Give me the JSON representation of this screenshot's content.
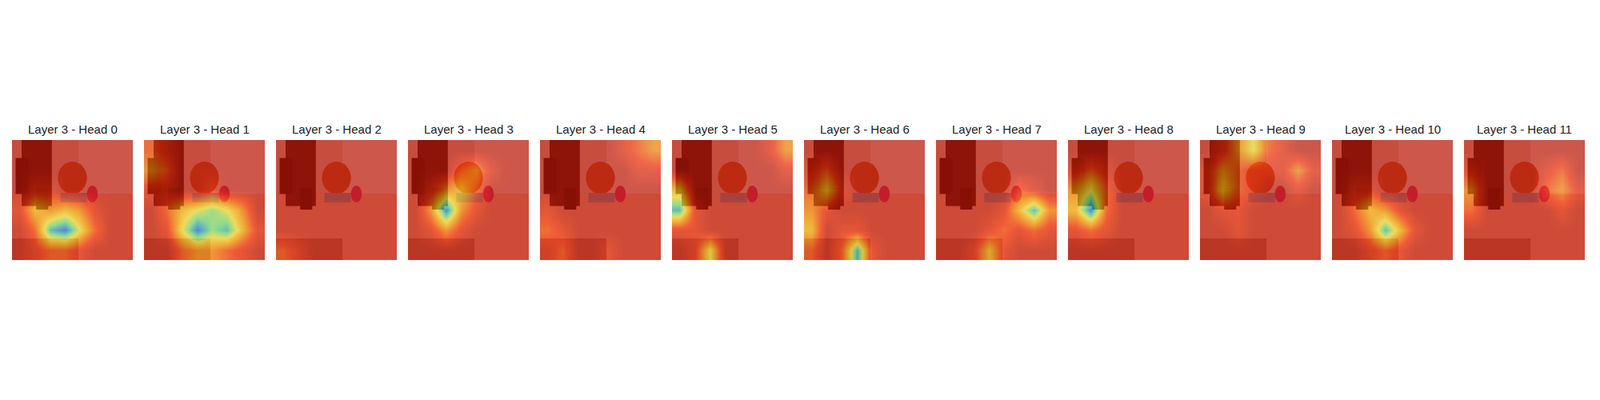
{
  "chart_data": {
    "type": "heatmap",
    "tick_labels": false,
    "zlim": [
      0,
      1
    ],
    "panels": [
      {
        "title": "Layer 3 - Head 0",
        "cells": [
          [
            0.1,
            0.1,
            0.1,
            0.1,
            0.1,
            0.1,
            0.1,
            0.1
          ],
          [
            0.1,
            0.1,
            0.1,
            0.1,
            0.1,
            0.1,
            0.1,
            0.1
          ],
          [
            0.1,
            0.2,
            0.2,
            0.1,
            0.1,
            0.1,
            0.1,
            0.1
          ],
          [
            0.2,
            0.5,
            0.4,
            0.5,
            0.4,
            0.2,
            0.1,
            0.1
          ],
          [
            0.1,
            0.3,
            0.8,
            0.9,
            0.6,
            0.3,
            0.1,
            0.1
          ],
          [
            0.1,
            0.2,
            0.3,
            0.3,
            0.2,
            0.1,
            0.1,
            0.1
          ]
        ]
      },
      {
        "title": "Layer 3 - Head 1",
        "cells": [
          [
            0.3,
            0.2,
            0.1,
            0.1,
            0.1,
            0.1,
            0.1,
            0.1
          ],
          [
            0.4,
            0.3,
            0.1,
            0.1,
            0.1,
            0.1,
            0.1,
            0.1
          ],
          [
            0.2,
            0.2,
            0.1,
            0.1,
            0.2,
            0.1,
            0.1,
            0.1
          ],
          [
            0.1,
            0.3,
            0.5,
            0.6,
            0.7,
            0.6,
            0.4,
            0.1
          ],
          [
            0.1,
            0.2,
            0.6,
            0.9,
            0.7,
            0.8,
            0.5,
            0.2
          ],
          [
            0.1,
            0.1,
            0.3,
            0.4,
            0.4,
            0.3,
            0.2,
            0.1
          ]
        ]
      },
      {
        "title": "Layer 3 - Head 2",
        "cells": [
          [
            0.1,
            0.1,
            0.1,
            0.1,
            0.1,
            0.1,
            0.1,
            0.1
          ],
          [
            0.1,
            0.1,
            0.1,
            0.1,
            0.1,
            0.1,
            0.1,
            0.1
          ],
          [
            0.1,
            0.1,
            0.1,
            0.1,
            0.1,
            0.1,
            0.1,
            0.1
          ],
          [
            0.1,
            0.1,
            0.1,
            0.1,
            0.1,
            0.1,
            0.1,
            0.1
          ],
          [
            0.1,
            0.1,
            0.1,
            0.1,
            0.1,
            0.1,
            0.1,
            0.1
          ],
          [
            0.3,
            0.2,
            0.1,
            0.1,
            0.1,
            0.1,
            0.1,
            0.1
          ]
        ]
      },
      {
        "title": "Layer 3 - Head 3",
        "cells": [
          [
            0.1,
            0.1,
            0.1,
            0.1,
            0.1,
            0.1,
            0.1,
            0.1
          ],
          [
            0.1,
            0.1,
            0.1,
            0.3,
            0.4,
            0.2,
            0.1,
            0.1
          ],
          [
            0.1,
            0.2,
            0.4,
            0.5,
            0.3,
            0.1,
            0.1,
            0.1
          ],
          [
            0.1,
            0.4,
            0.9,
            0.4,
            0.2,
            0.1,
            0.1,
            0.1
          ],
          [
            0.1,
            0.2,
            0.4,
            0.2,
            0.1,
            0.1,
            0.1,
            0.1
          ],
          [
            0.1,
            0.1,
            0.1,
            0.1,
            0.1,
            0.1,
            0.1,
            0.1
          ]
        ]
      },
      {
        "title": "Layer 3 - Head 4",
        "cells": [
          [
            0.1,
            0.1,
            0.1,
            0.1,
            0.1,
            0.2,
            0.3,
            0.4
          ],
          [
            0.1,
            0.1,
            0.1,
            0.1,
            0.1,
            0.1,
            0.2,
            0.2
          ],
          [
            0.1,
            0.1,
            0.1,
            0.1,
            0.1,
            0.1,
            0.1,
            0.1
          ],
          [
            0.2,
            0.1,
            0.1,
            0.1,
            0.1,
            0.1,
            0.1,
            0.1
          ],
          [
            0.3,
            0.2,
            0.1,
            0.1,
            0.1,
            0.1,
            0.1,
            0.1
          ],
          [
            0.2,
            0.3,
            0.1,
            0.1,
            0.2,
            0.1,
            0.1,
            0.1
          ]
        ]
      },
      {
        "title": "Layer 3 - Head 5",
        "cells": [
          [
            0.1,
            0.1,
            0.1,
            0.1,
            0.1,
            0.1,
            0.2,
            0.4
          ],
          [
            0.1,
            0.1,
            0.1,
            0.1,
            0.1,
            0.1,
            0.1,
            0.2
          ],
          [
            0.5,
            0.1,
            0.1,
            0.1,
            0.1,
            0.1,
            0.1,
            0.1
          ],
          [
            0.8,
            0.2,
            0.1,
            0.1,
            0.1,
            0.1,
            0.1,
            0.1
          ],
          [
            0.2,
            0.2,
            0.1,
            0.1,
            0.1,
            0.1,
            0.1,
            0.1
          ],
          [
            0.1,
            0.2,
            0.6,
            0.1,
            0.1,
            0.1,
            0.1,
            0.1
          ]
        ]
      },
      {
        "title": "Layer 3 - Head 6",
        "cells": [
          [
            0.1,
            0.1,
            0.1,
            0.1,
            0.1,
            0.1,
            0.1,
            0.1
          ],
          [
            0.2,
            0.3,
            0.1,
            0.1,
            0.1,
            0.1,
            0.1,
            0.1
          ],
          [
            0.3,
            0.5,
            0.2,
            0.1,
            0.1,
            0.1,
            0.1,
            0.1
          ],
          [
            0.4,
            0.2,
            0.1,
            0.1,
            0.1,
            0.1,
            0.1,
            0.1
          ],
          [
            0.5,
            0.1,
            0.2,
            0.2,
            0.1,
            0.1,
            0.1,
            0.1
          ],
          [
            0.3,
            0.1,
            0.3,
            0.8,
            0.2,
            0.1,
            0.1,
            0.1
          ]
        ]
      },
      {
        "title": "Layer 3 - Head 7",
        "cells": [
          [
            0.1,
            0.1,
            0.1,
            0.1,
            0.1,
            0.1,
            0.1,
            0.1
          ],
          [
            0.1,
            0.1,
            0.1,
            0.1,
            0.1,
            0.1,
            0.1,
            0.1
          ],
          [
            0.1,
            0.1,
            0.1,
            0.1,
            0.1,
            0.3,
            0.2,
            0.1
          ],
          [
            0.1,
            0.1,
            0.1,
            0.1,
            0.2,
            0.5,
            0.8,
            0.4
          ],
          [
            0.1,
            0.1,
            0.1,
            0.2,
            0.3,
            0.2,
            0.3,
            0.2
          ],
          [
            0.1,
            0.1,
            0.2,
            0.5,
            0.2,
            0.1,
            0.1,
            0.1
          ]
        ]
      },
      {
        "title": "Layer 3 - Head 8",
        "cells": [
          [
            0.1,
            0.1,
            0.1,
            0.1,
            0.1,
            0.1,
            0.1,
            0.1
          ],
          [
            0.2,
            0.3,
            0.2,
            0.1,
            0.1,
            0.1,
            0.1,
            0.1
          ],
          [
            0.4,
            0.6,
            0.3,
            0.1,
            0.1,
            0.1,
            0.1,
            0.1
          ],
          [
            0.5,
            0.9,
            0.3,
            0.1,
            0.1,
            0.1,
            0.1,
            0.1
          ],
          [
            0.2,
            0.3,
            0.2,
            0.1,
            0.1,
            0.1,
            0.1,
            0.1
          ],
          [
            0.1,
            0.1,
            0.1,
            0.1,
            0.1,
            0.1,
            0.1,
            0.1
          ]
        ]
      },
      {
        "title": "Layer 3 - Head 9",
        "cells": [
          [
            0.1,
            0.2,
            0.4,
            0.6,
            0.3,
            0.2,
            0.1,
            0.1
          ],
          [
            0.2,
            0.4,
            0.3,
            0.2,
            0.2,
            0.2,
            0.4,
            0.2
          ],
          [
            0.2,
            0.5,
            0.3,
            0.2,
            0.1,
            0.1,
            0.2,
            0.1
          ],
          [
            0.1,
            0.2,
            0.2,
            0.1,
            0.1,
            0.1,
            0.1,
            0.1
          ],
          [
            0.1,
            0.1,
            0.2,
            0.1,
            0.1,
            0.1,
            0.1,
            0.1
          ],
          [
            0.1,
            0.1,
            0.1,
            0.1,
            0.1,
            0.1,
            0.1,
            0.1
          ]
        ]
      },
      {
        "title": "Layer 3 - Head 10",
        "cells": [
          [
            0.1,
            0.1,
            0.1,
            0.1,
            0.1,
            0.1,
            0.1,
            0.1
          ],
          [
            0.1,
            0.1,
            0.1,
            0.1,
            0.1,
            0.1,
            0.1,
            0.1
          ],
          [
            0.1,
            0.2,
            0.2,
            0.1,
            0.1,
            0.1,
            0.1,
            0.1
          ],
          [
            0.1,
            0.3,
            0.5,
            0.4,
            0.2,
            0.1,
            0.1,
            0.1
          ],
          [
            0.1,
            0.2,
            0.4,
            0.8,
            0.5,
            0.2,
            0.1,
            0.1
          ],
          [
            0.1,
            0.1,
            0.2,
            0.3,
            0.2,
            0.1,
            0.1,
            0.1
          ]
        ]
      },
      {
        "title": "Layer 3 - Head 11",
        "cells": [
          [
            0.1,
            0.1,
            0.1,
            0.1,
            0.1,
            0.1,
            0.1,
            0.1
          ],
          [
            0.2,
            0.1,
            0.1,
            0.1,
            0.1,
            0.2,
            0.3,
            0.1
          ],
          [
            0.4,
            0.1,
            0.1,
            0.1,
            0.1,
            0.3,
            0.4,
            0.2
          ],
          [
            0.3,
            0.1,
            0.1,
            0.1,
            0.1,
            0.1,
            0.2,
            0.1
          ],
          [
            0.1,
            0.1,
            0.1,
            0.1,
            0.1,
            0.1,
            0.1,
            0.1
          ],
          [
            0.1,
            0.1,
            0.1,
            0.1,
            0.1,
            0.1,
            0.1,
            0.1
          ]
        ]
      }
    ]
  }
}
